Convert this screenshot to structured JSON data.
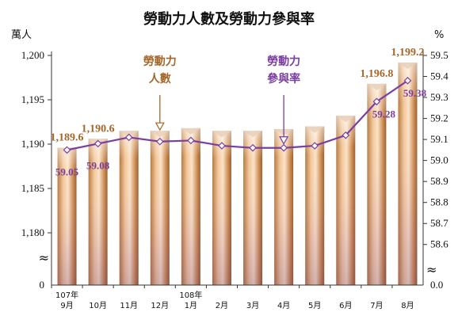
{
  "chart_data": {
    "type": "bar",
    "title": "勞動力人數及勞動力參與率",
    "left_unit": "萬人",
    "right_unit": "%",
    "categories": [
      "9月",
      "10月",
      "11月",
      "12月",
      "1月",
      "2月",
      "3月",
      "4月",
      "5月",
      "6月",
      "7月",
      "8月"
    ],
    "year_labels": [
      {
        "index": 0,
        "text": "107年"
      },
      {
        "index": 4,
        "text": "108年"
      }
    ],
    "y_left": {
      "ticks": [
        "1,180",
        "1,185",
        "1,190",
        "1,195",
        "1,200"
      ],
      "tick_values": [
        1180,
        1185,
        1190,
        1195,
        1200
      ],
      "zero_label": "0",
      "range": [
        1177.5,
        1200
      ]
    },
    "y_right": {
      "ticks": [
        "58.6",
        "58.7",
        "58.8",
        "58.9",
        "59.0",
        "59.1",
        "59.2",
        "59.3",
        "59.4",
        "59.5"
      ],
      "tick_values": [
        58.6,
        58.7,
        58.8,
        58.9,
        59.0,
        59.1,
        59.2,
        59.3,
        59.4,
        59.5
      ],
      "zero_label": "0.0",
      "range": [
        58.55,
        59.5
      ]
    },
    "series": [
      {
        "name": "勞動力人數",
        "kind": "bar",
        "axis": "left",
        "color": "#c8956a",
        "values": [
          1189.6,
          1190.6,
          1191.5,
          1191.5,
          1191.8,
          1191.5,
          1191.5,
          1191.7,
          1192.0,
          1193.2,
          1196.8,
          1199.2
        ]
      },
      {
        "name": "勞動力參與率",
        "kind": "line",
        "axis": "right",
        "color": "#7a3fa0",
        "values": [
          59.05,
          59.08,
          59.11,
          59.09,
          59.095,
          59.07,
          59.06,
          59.06,
          59.07,
          59.12,
          59.28,
          59.38
        ]
      }
    ],
    "bar_labels": [
      {
        "index": 0,
        "text": "1,189.6"
      },
      {
        "index": 1,
        "text": "1,190.6"
      },
      {
        "index": 10,
        "text": "1,196.8"
      },
      {
        "index": 11,
        "text": "1,199.2"
      }
    ],
    "line_labels": [
      {
        "index": 0,
        "text": "59.05"
      },
      {
        "index": 1,
        "text": "59.08"
      },
      {
        "index": 10,
        "text": "59.28"
      },
      {
        "index": 11,
        "text": "59.38"
      }
    ],
    "annotations": [
      {
        "target": "bar",
        "index": 3,
        "lines": [
          "勞動力",
          "人數"
        ]
      },
      {
        "target": "line",
        "index": 7,
        "lines": [
          "勞動力",
          "參與率"
        ]
      }
    ],
    "axis_break_symbol": "≈",
    "grid": false
  }
}
